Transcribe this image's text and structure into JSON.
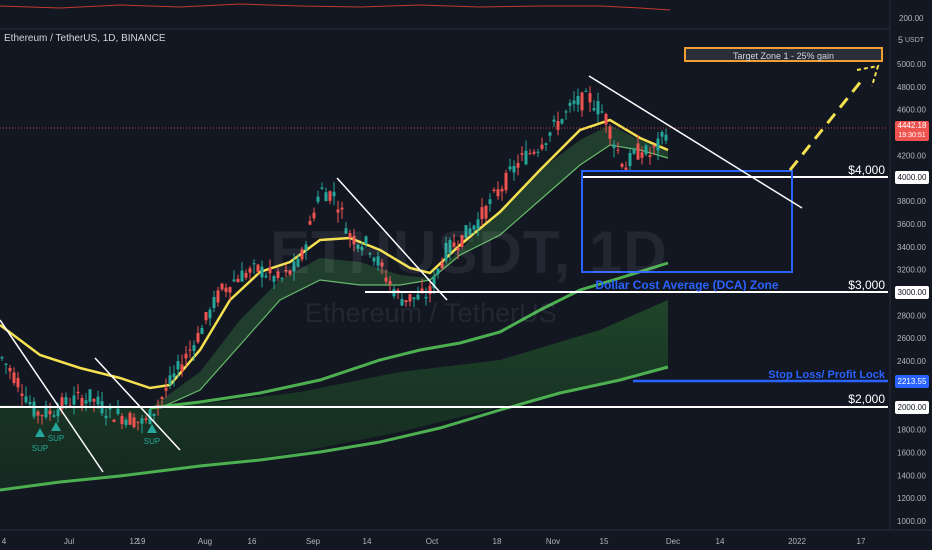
{
  "chart_title": "Ethereum / TetherUS, 1D, BINANCE",
  "watermark": {
    "symbol": "ETHUSDT, 1D",
    "name": "Ethereum / TetherUS"
  },
  "price_axis": {
    "currency_label": "USDT",
    "ticks": [
      "5000.00",
      "4800.00",
      "4600.00",
      "4400.00",
      "4200.00",
      "4000.00",
      "3800.00",
      "3600.00",
      "3400.00",
      "3200.00",
      "3000.00",
      "2800.00",
      "2600.00",
      "2400.00",
      "2200.00",
      "2000.00",
      "1800.00",
      "1600.00",
      "1400.00",
      "1200.00",
      "1000.00"
    ],
    "indicator_tick": "200.00",
    "current_price": "4442.18",
    "countdown": "19:30:51",
    "level_tags": [
      "4000.00",
      "3000.00",
      "2213.55",
      "2000.00"
    ]
  },
  "time_axis": {
    "labels": [
      "4",
      "Jul",
      "12",
      "19",
      "Aug",
      "16",
      "Sep",
      "14",
      "Oct",
      "18",
      "Nov",
      "15",
      "Dec",
      "14",
      "2022",
      "17"
    ]
  },
  "annotations": {
    "target_zone": "Target Zone 1 - 25% gain",
    "level_4000": "$4,000",
    "level_3000": "$3,000",
    "level_2000": "$2,000",
    "dca_zone": "Dollar Cost Average (DCA) Zone",
    "stop_loss": "Stop Loss/ Profit Lock",
    "sup_labels": [
      "SUP",
      "SUP",
      "SUP"
    ],
    "scale_marker": "5"
  },
  "colors": {
    "background": "#131722",
    "up": "#26a69a",
    "down": "#ef5350",
    "ma_yellow": "#f5e050",
    "ma_green": "#4caf50",
    "blue": "#2962ff",
    "white": "#ffffff",
    "target": "#f0a030"
  },
  "chart_data": {
    "type": "candlestick",
    "title": "Ethereum / TetherUS, 1D, BINANCE",
    "y_range": [
      1000,
      5000
    ],
    "time_labels": [
      "4",
      "Jul",
      "12",
      "19",
      "Aug",
      "16",
      "Sep",
      "14",
      "Oct",
      "18",
      "Nov",
      "15",
      "Dec",
      "14",
      "2022",
      "17"
    ],
    "key_prices": [
      {
        "date": "Jun 22",
        "close": 1900
      },
      {
        "date": "Jul 20",
        "close": 1800
      },
      {
        "date": "Sep 3",
        "close": 3950
      },
      {
        "date": "Sep 28",
        "close": 2850
      },
      {
        "date": "Nov 10",
        "close": 4800
      },
      {
        "date": "Nov 29",
        "close": 4442.18
      }
    ],
    "horizontal_levels": [
      4000,
      3000,
      2213.55,
      2000
    ],
    "dca_zone": [
      3150,
      4050
    ],
    "target_zone_1": 5050,
    "current_price": 4442.18
  }
}
